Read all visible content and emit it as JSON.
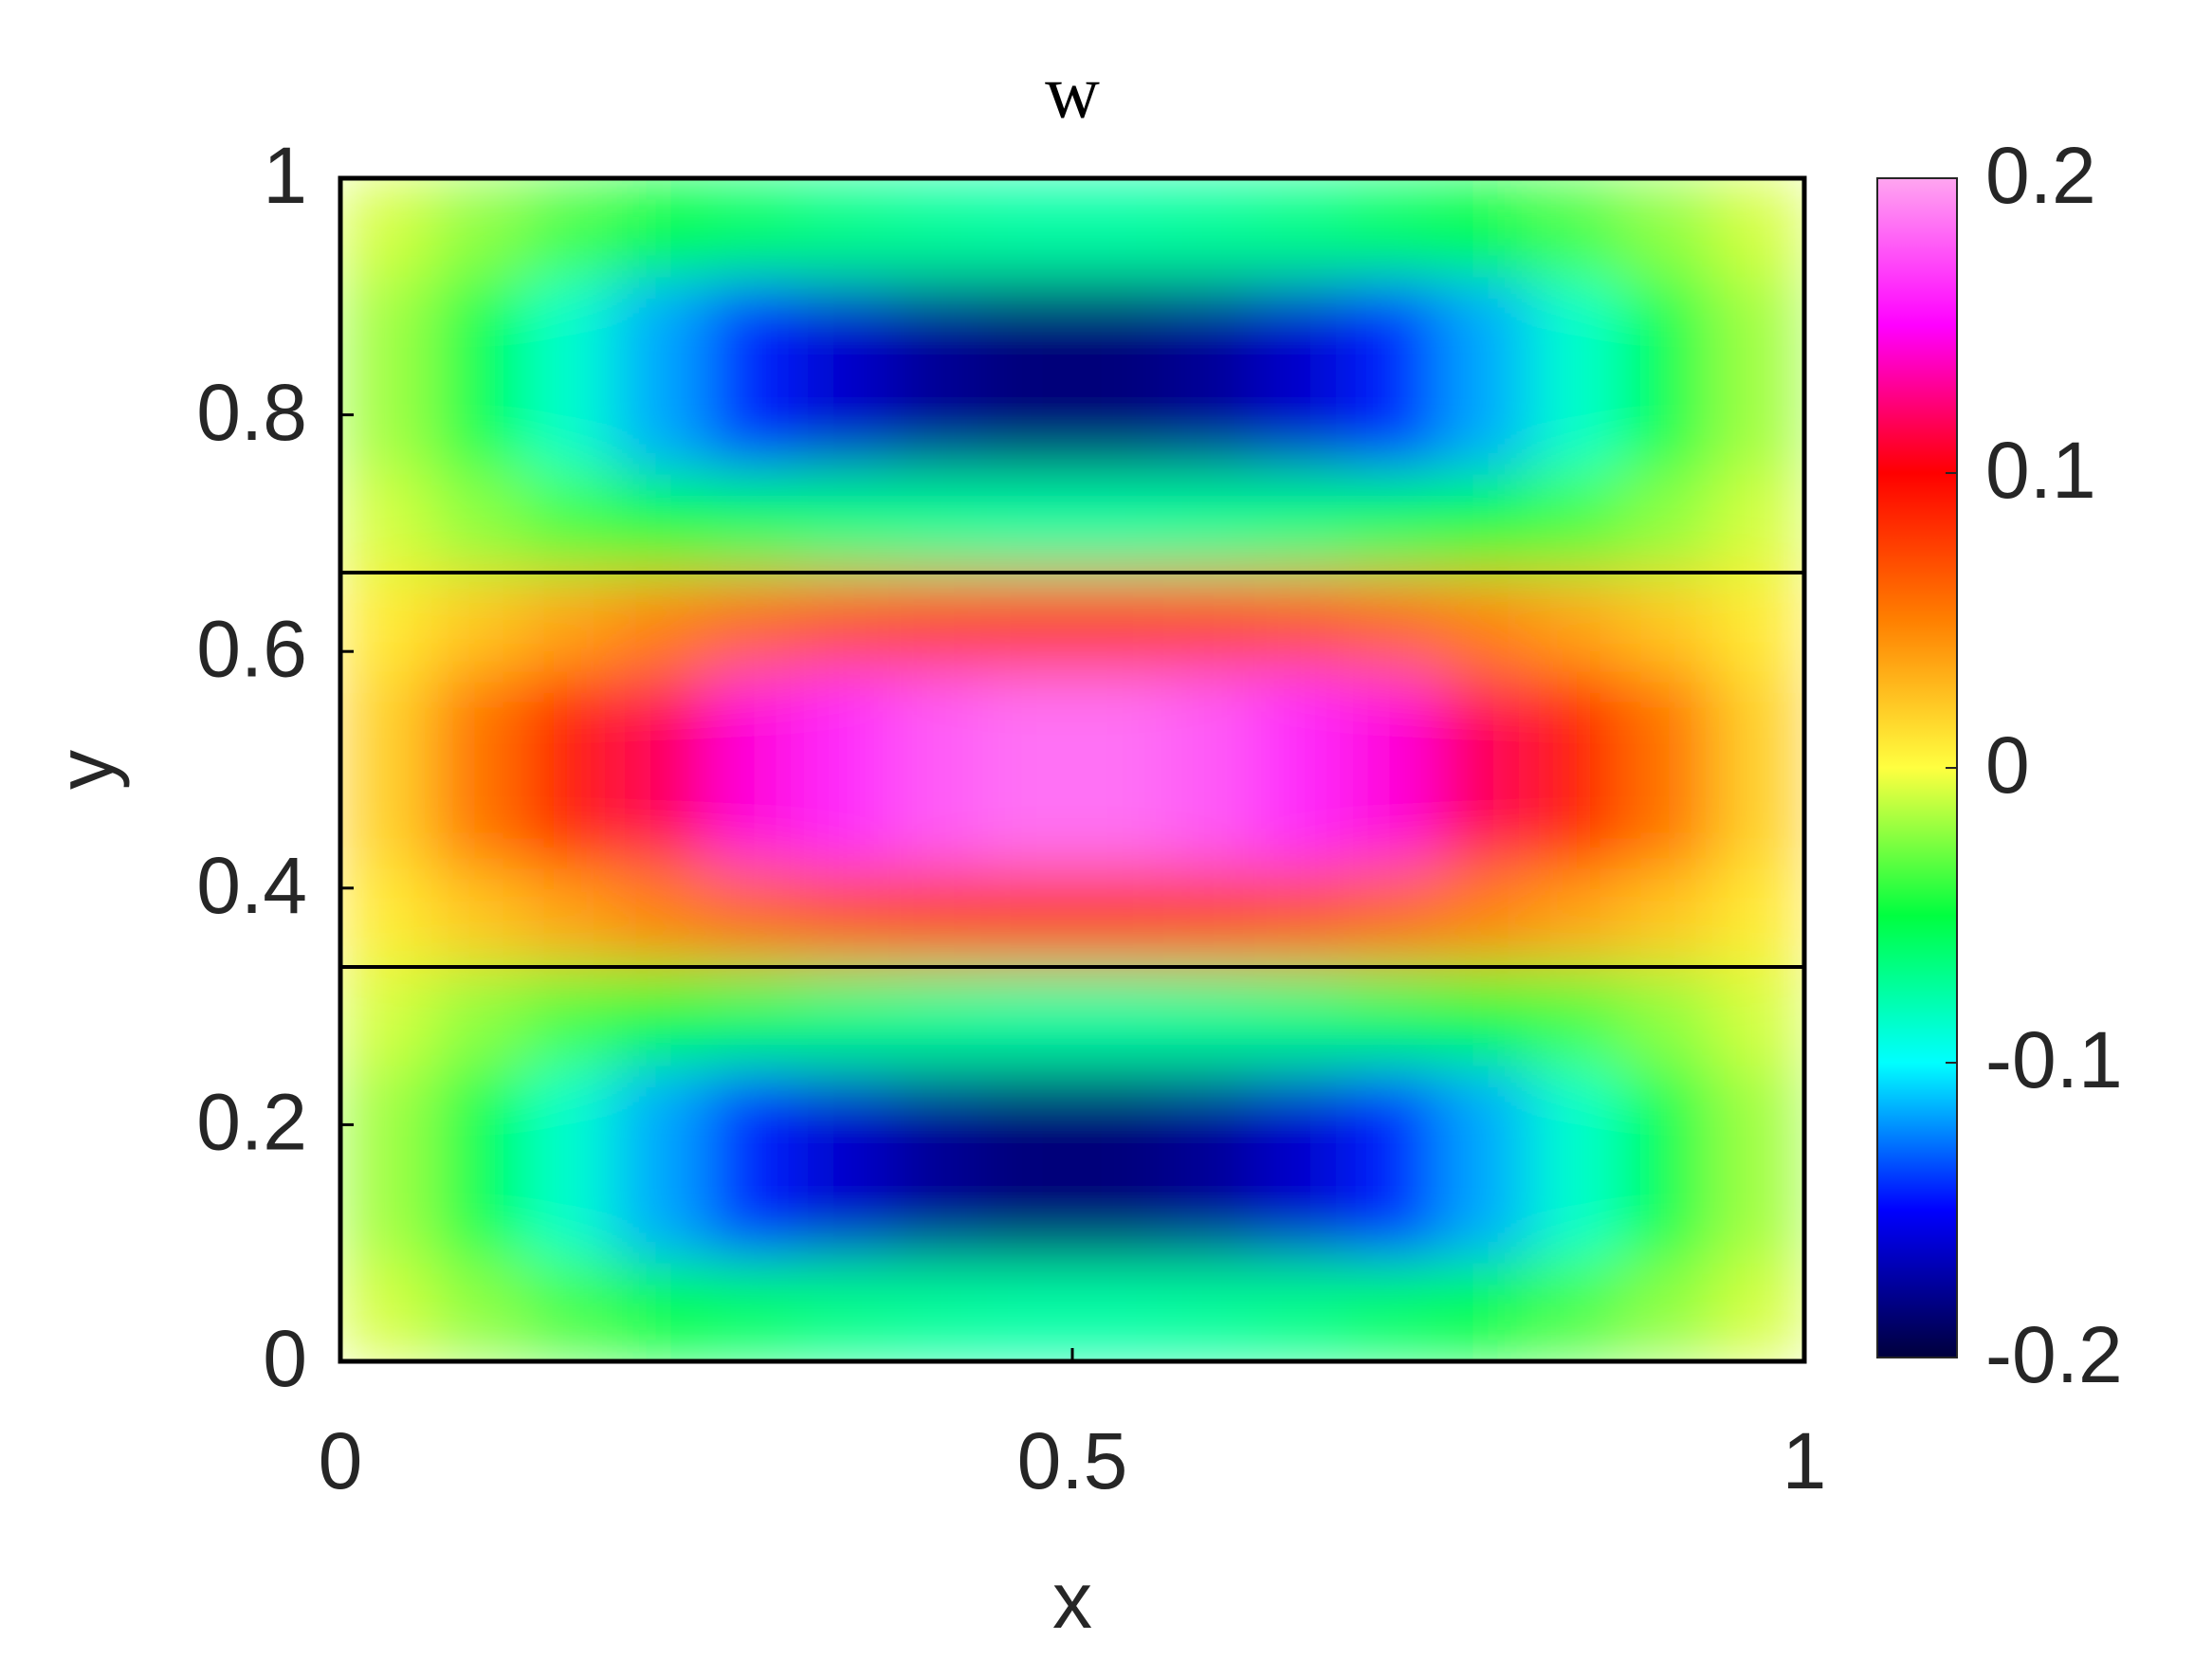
{
  "chart_data": {
    "type": "heatmap",
    "title": "w",
    "x_label": "x",
    "y_label": "y",
    "xlim": [
      0,
      1
    ],
    "ylim": [
      0,
      1
    ],
    "xticks": [
      0,
      0.5,
      1
    ],
    "yticks": [
      0,
      0.2,
      0.4,
      0.6,
      0.8,
      1
    ],
    "hlines": [
      0.3333,
      0.6667
    ],
    "clim": [
      -0.2,
      0.2
    ],
    "cticks": [
      -0.2,
      -0.1,
      0,
      0.1,
      0.2
    ],
    "colormap": [
      "#00003c",
      "#0000ff",
      "#00ffff",
      "#00ff40",
      "#ffff40",
      "#ff8000",
      "#ff0000",
      "#ff00ff",
      "#ffa6f0"
    ],
    "z": [
      [
        -0.008,
        -0.022,
        -0.036,
        -0.049,
        -0.059,
        -0.068,
        -0.073,
        -0.076,
        -0.076,
        -0.073,
        -0.068,
        -0.059,
        -0.049,
        -0.036,
        -0.022,
        -0.008
      ],
      [
        -0.018,
        -0.054,
        -0.087,
        -0.117,
        -0.143,
        -0.163,
        -0.177,
        -0.184,
        -0.184,
        -0.177,
        -0.163,
        -0.143,
        -0.117,
        -0.087,
        -0.054,
        -0.018
      ],
      [
        -0.018,
        -0.054,
        -0.087,
        -0.117,
        -0.143,
        -0.163,
        -0.177,
        -0.184,
        -0.184,
        -0.177,
        -0.163,
        -0.143,
        -0.117,
        -0.087,
        -0.054,
        -0.018
      ],
      [
        -0.008,
        -0.022,
        -0.036,
        -0.049,
        -0.059,
        -0.068,
        -0.073,
        -0.076,
        -0.076,
        -0.073,
        -0.068,
        -0.059,
        -0.049,
        -0.036,
        -0.022,
        -0.008
      ],
      [
        0.008,
        0.022,
        0.036,
        0.049,
        0.059,
        0.068,
        0.073,
        0.076,
        0.076,
        0.073,
        0.068,
        0.059,
        0.049,
        0.036,
        0.022,
        0.008
      ],
      [
        0.018,
        0.054,
        0.087,
        0.117,
        0.143,
        0.163,
        0.177,
        0.184,
        0.184,
        0.177,
        0.163,
        0.143,
        0.117,
        0.087,
        0.054,
        0.018
      ],
      [
        0.018,
        0.054,
        0.087,
        0.117,
        0.143,
        0.163,
        0.177,
        0.184,
        0.184,
        0.177,
        0.163,
        0.143,
        0.117,
        0.087,
        0.054,
        0.018
      ],
      [
        0.008,
        0.022,
        0.036,
        0.049,
        0.059,
        0.068,
        0.073,
        0.076,
        0.076,
        0.073,
        0.068,
        0.059,
        0.049,
        0.036,
        0.022,
        0.008
      ],
      [
        -0.008,
        -0.022,
        -0.036,
        -0.049,
        -0.059,
        -0.068,
        -0.073,
        -0.076,
        -0.076,
        -0.073,
        -0.068,
        -0.059,
        -0.049,
        -0.036,
        -0.022,
        -0.008
      ],
      [
        -0.018,
        -0.054,
        -0.087,
        -0.117,
        -0.143,
        -0.163,
        -0.177,
        -0.184,
        -0.184,
        -0.177,
        -0.163,
        -0.143,
        -0.117,
        -0.087,
        -0.054,
        -0.018
      ],
      [
        -0.018,
        -0.054,
        -0.087,
        -0.117,
        -0.143,
        -0.163,
        -0.177,
        -0.184,
        -0.184,
        -0.177,
        -0.163,
        -0.143,
        -0.117,
        -0.087,
        -0.054,
        -0.018
      ],
      [
        -0.008,
        -0.022,
        -0.036,
        -0.049,
        -0.059,
        -0.068,
        -0.073,
        -0.076,
        -0.076,
        -0.073,
        -0.068,
        -0.059,
        -0.049,
        -0.036,
        -0.022,
        -0.008
      ]
    ]
  }
}
